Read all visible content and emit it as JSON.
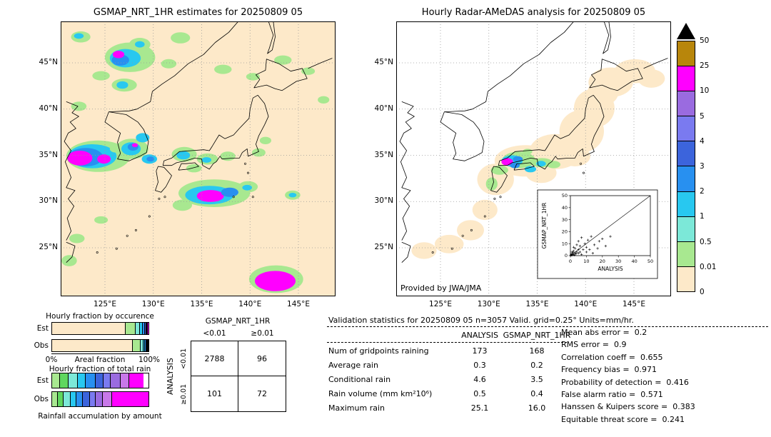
{
  "figure": {
    "background": "#ffffff"
  },
  "map_grid": {
    "lons": [
      125,
      130,
      135,
      140,
      145
    ],
    "lon_labels": [
      "125°E",
      "130°E",
      "135°E",
      "140°E",
      "145°E"
    ],
    "lats": [
      45,
      40,
      35,
      30,
      25
    ],
    "lat_labels": [
      "45°N",
      "40°N",
      "35°N",
      "30°N",
      "25°N"
    ]
  },
  "left_map": {
    "title": "GSMAP_NRT_1HR estimates for 20250809 05",
    "background": "#fde9c9",
    "blobs": [
      [
        122.5,
        47.8,
        1.0,
        0.6,
        "#a8e890"
      ],
      [
        122.3,
        47.9,
        0.5,
        0.3,
        "#28c8f0"
      ],
      [
        127.6,
        45.6,
        2.6,
        1.6,
        "#a8e890"
      ],
      [
        127.1,
        45.5,
        1.6,
        1.0,
        "#28c8f0"
      ],
      [
        126.6,
        45.3,
        0.9,
        0.6,
        "#2890f0"
      ],
      [
        126.4,
        45.9,
        0.6,
        0.4,
        "#ff00ff"
      ],
      [
        128.6,
        47.0,
        1.1,
        0.7,
        "#a8e890"
      ],
      [
        128.6,
        47.0,
        0.5,
        0.35,
        "#28c8f0"
      ],
      [
        132.8,
        47.7,
        1.0,
        0.6,
        "#a8e890"
      ],
      [
        131.6,
        44.9,
        0.8,
        0.5,
        "#a8e890"
      ],
      [
        124.6,
        43.6,
        0.9,
        0.5,
        "#a8e890"
      ],
      [
        127.0,
        42.6,
        1.3,
        0.7,
        "#a8e890"
      ],
      [
        126.8,
        42.6,
        0.6,
        0.4,
        "#28c8f0"
      ],
      [
        122.3,
        40.3,
        0.8,
        0.5,
        "#a8e890"
      ],
      [
        137.2,
        44.3,
        0.9,
        0.5,
        "#a8e890"
      ],
      [
        140.3,
        43.5,
        0.7,
        0.4,
        "#a8e890"
      ],
      [
        143.4,
        45.3,
        0.9,
        0.5,
        "#a8e890"
      ],
      [
        146.0,
        44.1,
        0.7,
        0.4,
        "#a8e890"
      ],
      [
        147.6,
        41.0,
        0.6,
        0.4,
        "#a8e890"
      ],
      [
        124.3,
        34.9,
        3.3,
        1.7,
        "#a8e890"
      ],
      [
        123.7,
        34.9,
        2.5,
        1.3,
        "#28c8f0"
      ],
      [
        123.0,
        34.8,
        1.8,
        1.0,
        "#2890f0"
      ],
      [
        122.4,
        34.7,
        1.3,
        0.8,
        "#ff00ff"
      ],
      [
        124.9,
        34.6,
        0.7,
        0.5,
        "#ff00ff"
      ],
      [
        126.1,
        35.7,
        0.6,
        0.4,
        "#a8e890"
      ],
      [
        127.8,
        35.7,
        1.7,
        1.1,
        "#a8e890"
      ],
      [
        127.7,
        35.7,
        1.0,
        0.7,
        "#28c8f0"
      ],
      [
        127.9,
        35.9,
        0.55,
        0.4,
        "#2890f0"
      ],
      [
        128.1,
        36.1,
        0.3,
        0.22,
        "#ff00ff"
      ],
      [
        128.9,
        36.9,
        0.7,
        0.5,
        "#28c8f0"
      ],
      [
        129.6,
        34.6,
        0.8,
        0.5,
        "#28c8f0"
      ],
      [
        129.7,
        34.6,
        0.4,
        0.28,
        "#2890f0"
      ],
      [
        133.2,
        35.1,
        1.3,
        0.8,
        "#a8e890"
      ],
      [
        133.1,
        35.0,
        0.7,
        0.45,
        "#28c8f0"
      ],
      [
        135.6,
        34.6,
        1.1,
        0.6,
        "#a8e890"
      ],
      [
        135.5,
        34.5,
        0.5,
        0.3,
        "#28c8f0"
      ],
      [
        134.2,
        33.6,
        0.8,
        0.45,
        "#a8e890"
      ],
      [
        137.7,
        34.9,
        0.8,
        0.5,
        "#a8e890"
      ],
      [
        140.9,
        35.3,
        0.7,
        0.45,
        "#a8e890"
      ],
      [
        141.6,
        36.6,
        0.6,
        0.4,
        "#a8e890"
      ],
      [
        136.3,
        30.9,
        3.7,
        1.5,
        "#a8e890"
      ],
      [
        135.8,
        30.7,
        2.5,
        1.0,
        "#28c8f0"
      ],
      [
        135.9,
        30.6,
        1.4,
        0.65,
        "#ff00ff"
      ],
      [
        137.9,
        31.0,
        0.9,
        0.5,
        "#2890f0"
      ],
      [
        139.8,
        31.6,
        1.0,
        0.6,
        "#a8e890"
      ],
      [
        139.7,
        31.5,
        0.5,
        0.3,
        "#28c8f0"
      ],
      [
        133.0,
        29.6,
        1.0,
        0.6,
        "#a8e890"
      ],
      [
        144.4,
        30.7,
        0.8,
        0.5,
        "#a8e890"
      ],
      [
        144.4,
        30.7,
        0.4,
        0.25,
        "#28c8f0"
      ],
      [
        122.1,
        26.0,
        0.8,
        0.5,
        "#a8e890"
      ],
      [
        124.6,
        28.0,
        0.7,
        0.4,
        "#a8e890"
      ],
      [
        121.3,
        23.6,
        0.8,
        0.6,
        "#a8e890"
      ],
      [
        142.7,
        21.6,
        2.8,
        1.5,
        "#a8e890"
      ],
      [
        142.6,
        21.4,
        2.1,
        1.1,
        "#ff00ff"
      ]
    ]
  },
  "right_map": {
    "title": "Hourly Radar-AMeDAS analysis for 20250809 05",
    "background": "#ffffff",
    "credit": "Provided by JWA/JMA",
    "blob_default_color": "#fde9c9",
    "blobs": [
      [
        133.8,
        34.4,
        3.2,
        1.7
      ],
      [
        136.9,
        35.4,
        2.7,
        1.9
      ],
      [
        139.6,
        37.6,
        2.3,
        2.3
      ],
      [
        140.9,
        40.1,
        2.1,
        2.1
      ],
      [
        142.6,
        42.9,
        2.3,
        1.6
      ],
      [
        145.1,
        44.1,
        2.1,
        1.3
      ],
      [
        146.8,
        43.3,
        1.4,
        1.0
      ],
      [
        141.8,
        41.8,
        1.6,
        1.4
      ],
      [
        130.7,
        32.4,
        1.9,
        1.7
      ],
      [
        129.6,
        29.1,
        1.3,
        1.1
      ],
      [
        128.1,
        26.9,
        1.4,
        1.1
      ],
      [
        125.9,
        25.4,
        1.5,
        1.0
      ],
      [
        123.3,
        24.7,
        1.3,
        0.9
      ],
      [
        135.4,
        33.1,
        1.6,
        1.1
      ],
      [
        138.9,
        34.9,
        1.6,
        1.1
      ],
      [
        133.1,
        34.5,
        1.7,
        0.9,
        "#a8e890"
      ],
      [
        132.4,
        34.4,
        1.1,
        0.6,
        "#28c8f0"
      ],
      [
        131.9,
        34.3,
        0.6,
        0.4,
        "#ff00ff"
      ],
      [
        133.0,
        34.6,
        0.5,
        0.3,
        "#2890f0"
      ],
      [
        135.5,
        34.2,
        1.1,
        0.5,
        "#a8e890"
      ],
      [
        135.4,
        34.1,
        0.5,
        0.3,
        "#28c8f0"
      ],
      [
        136.7,
        34.0,
        0.7,
        0.4,
        "#a8e890"
      ],
      [
        134.3,
        33.5,
        0.6,
        0.35,
        "#28c8f0"
      ],
      [
        132.7,
        33.9,
        0.5,
        0.3,
        "#2890f0"
      ],
      [
        131.1,
        33.4,
        0.9,
        0.5,
        "#a8e890"
      ],
      [
        134.0,
        35.4,
        0.5,
        0.3,
        "#a8e890"
      ],
      [
        130.3,
        31.9,
        0.6,
        0.7,
        "#a8e890"
      ]
    ]
  },
  "colorbar": {
    "tick_labels": [
      "50",
      "25",
      "10",
      "5",
      "4",
      "3",
      "2",
      "1",
      "0.5",
      "0.01",
      "0"
    ],
    "segment_colors_top_to_bottom": [
      "#b8860b",
      "#ff00ff",
      "#9a6be0",
      "#7a7af0",
      "#3c64dc",
      "#2890f0",
      "#28c8f0",
      "#7ce8d8",
      "#a8e890",
      "#fde9c9"
    ],
    "overflow_color": "#000000",
    "units": "mm/hr"
  },
  "chart_data": [
    {
      "id": "occurrence",
      "type": "bar",
      "stacked": true,
      "title": "Hourly fraction by occurence",
      "row_labels": [
        "Est",
        "Obs"
      ],
      "xlabel": "Areal fraction",
      "x_min_label": "0%",
      "x_max_label": "100%",
      "colors": [
        "#fde9c9",
        "#a8e890",
        "#7ce8d8",
        "#28c8f0",
        "#2890f0",
        "#3c64dc",
        "#7a7af0",
        "#9a6be0",
        "#ff00ff"
      ],
      "series": [
        {
          "name": "Est",
          "segments": [
            76,
            11,
            4,
            3,
            2,
            1.6,
            1.2,
            0.7,
            0.5
          ]
        },
        {
          "name": "Obs",
          "segments": [
            84.5,
            8,
            3,
            1.5,
            1,
            0.8,
            0.6,
            0.35,
            0.25
          ]
        }
      ]
    },
    {
      "id": "totalrain",
      "type": "bar",
      "stacked": true,
      "title": "Hourly fraction of total rain",
      "row_labels": [
        "Est",
        "Obs"
      ],
      "xlabel": "Rainfall accumulation by amount",
      "colors": [
        "#a8e890",
        "#5fd75f",
        "#7ce8d8",
        "#28c8f0",
        "#2890f0",
        "#3c64dc",
        "#7a7af0",
        "#9a6be0",
        "#c878e8",
        "#ff00ff"
      ],
      "series": [
        {
          "name": "Est",
          "segments": [
            8,
            9,
            10,
            8,
            10,
            8,
            8,
            10,
            9,
            15
          ]
        },
        {
          "name": "Obs",
          "segments": [
            6,
            6,
            7,
            6,
            7,
            7,
            6,
            8,
            9,
            38
          ]
        }
      ]
    },
    {
      "id": "contingency",
      "type": "table",
      "title": "GSMAP_NRT_1HR",
      "col_headers": [
        "<0.01",
        "≥0.01"
      ],
      "row_axis_label": "ANALYSIS",
      "row_headers": [
        "<0.01",
        "≥0.01"
      ],
      "values": [
        [
          2788,
          96
        ],
        [
          101,
          72
        ]
      ]
    },
    {
      "id": "validation",
      "type": "table",
      "title": "Validation statistics for 20250809 05  n=3057 Valid. grid=0.25° Units=mm/hr.",
      "col_headers": [
        "ANALYSIS",
        "GSMAP_NRT_1HR"
      ],
      "rows": [
        {
          "label": "Num of gridpoints raining",
          "analysis": "173",
          "gsmap": "168"
        },
        {
          "label": "Average rain",
          "analysis": "0.3",
          "gsmap": "0.2"
        },
        {
          "label": "Conditional rain",
          "analysis": "4.6",
          "gsmap": "3.5"
        },
        {
          "label": "Rain volume (mm km²10⁶)",
          "analysis": "0.5",
          "gsmap": "0.4"
        },
        {
          "label": "Maximum rain",
          "analysis": "25.1",
          "gsmap": "16.0"
        }
      ],
      "stats": [
        {
          "label": "Mean abs error",
          "value": "0.2"
        },
        {
          "label": "RMS error",
          "value": "0.9"
        },
        {
          "label": "Correlation coeff",
          "value": "0.655"
        },
        {
          "label": "Frequency bias",
          "value": "0.971"
        },
        {
          "label": "Probability of detection",
          "value": "0.416"
        },
        {
          "label": "False alarm ratio",
          "value": "0.571"
        },
        {
          "label": "Hanssen & Kuipers score",
          "value": "0.383"
        },
        {
          "label": "Equitable threat score",
          "value": "0.241"
        }
      ]
    },
    {
      "id": "inset_scatter",
      "type": "scatter",
      "xlabel": "ANALYSIS",
      "ylabel": "GSMAP_NRT_1HR",
      "xlim": [
        0,
        50
      ],
      "ylim": [
        0,
        50
      ],
      "ticks": [
        0,
        10,
        20,
        30,
        40,
        50
      ],
      "one_to_one_line": true,
      "points": [
        [
          0.3,
          0.3
        ],
        [
          0.5,
          1
        ],
        [
          0.8,
          0.4
        ],
        [
          1,
          1.5
        ],
        [
          1,
          3
        ],
        [
          1.2,
          0.6
        ],
        [
          1.5,
          2.5
        ],
        [
          2,
          1
        ],
        [
          2,
          4
        ],
        [
          2,
          7
        ],
        [
          2.5,
          0.5
        ],
        [
          3,
          2
        ],
        [
          3,
          6
        ],
        [
          3.5,
          1.5
        ],
        [
          4,
          3
        ],
        [
          4,
          9
        ],
        [
          5,
          2
        ],
        [
          5,
          5
        ],
        [
          5,
          12
        ],
        [
          6,
          3
        ],
        [
          6,
          8
        ],
        [
          7,
          1
        ],
        [
          7,
          15
        ],
        [
          8,
          5
        ],
        [
          9,
          10
        ],
        [
          10,
          3
        ],
        [
          10,
          7
        ],
        [
          11,
          13
        ],
        [
          12,
          5
        ],
        [
          13,
          16
        ],
        [
          14,
          2
        ],
        [
          15,
          9
        ],
        [
          17,
          6
        ],
        [
          18,
          12
        ],
        [
          20,
          14
        ],
        [
          22,
          8
        ],
        [
          25,
          16
        ]
      ]
    }
  ]
}
